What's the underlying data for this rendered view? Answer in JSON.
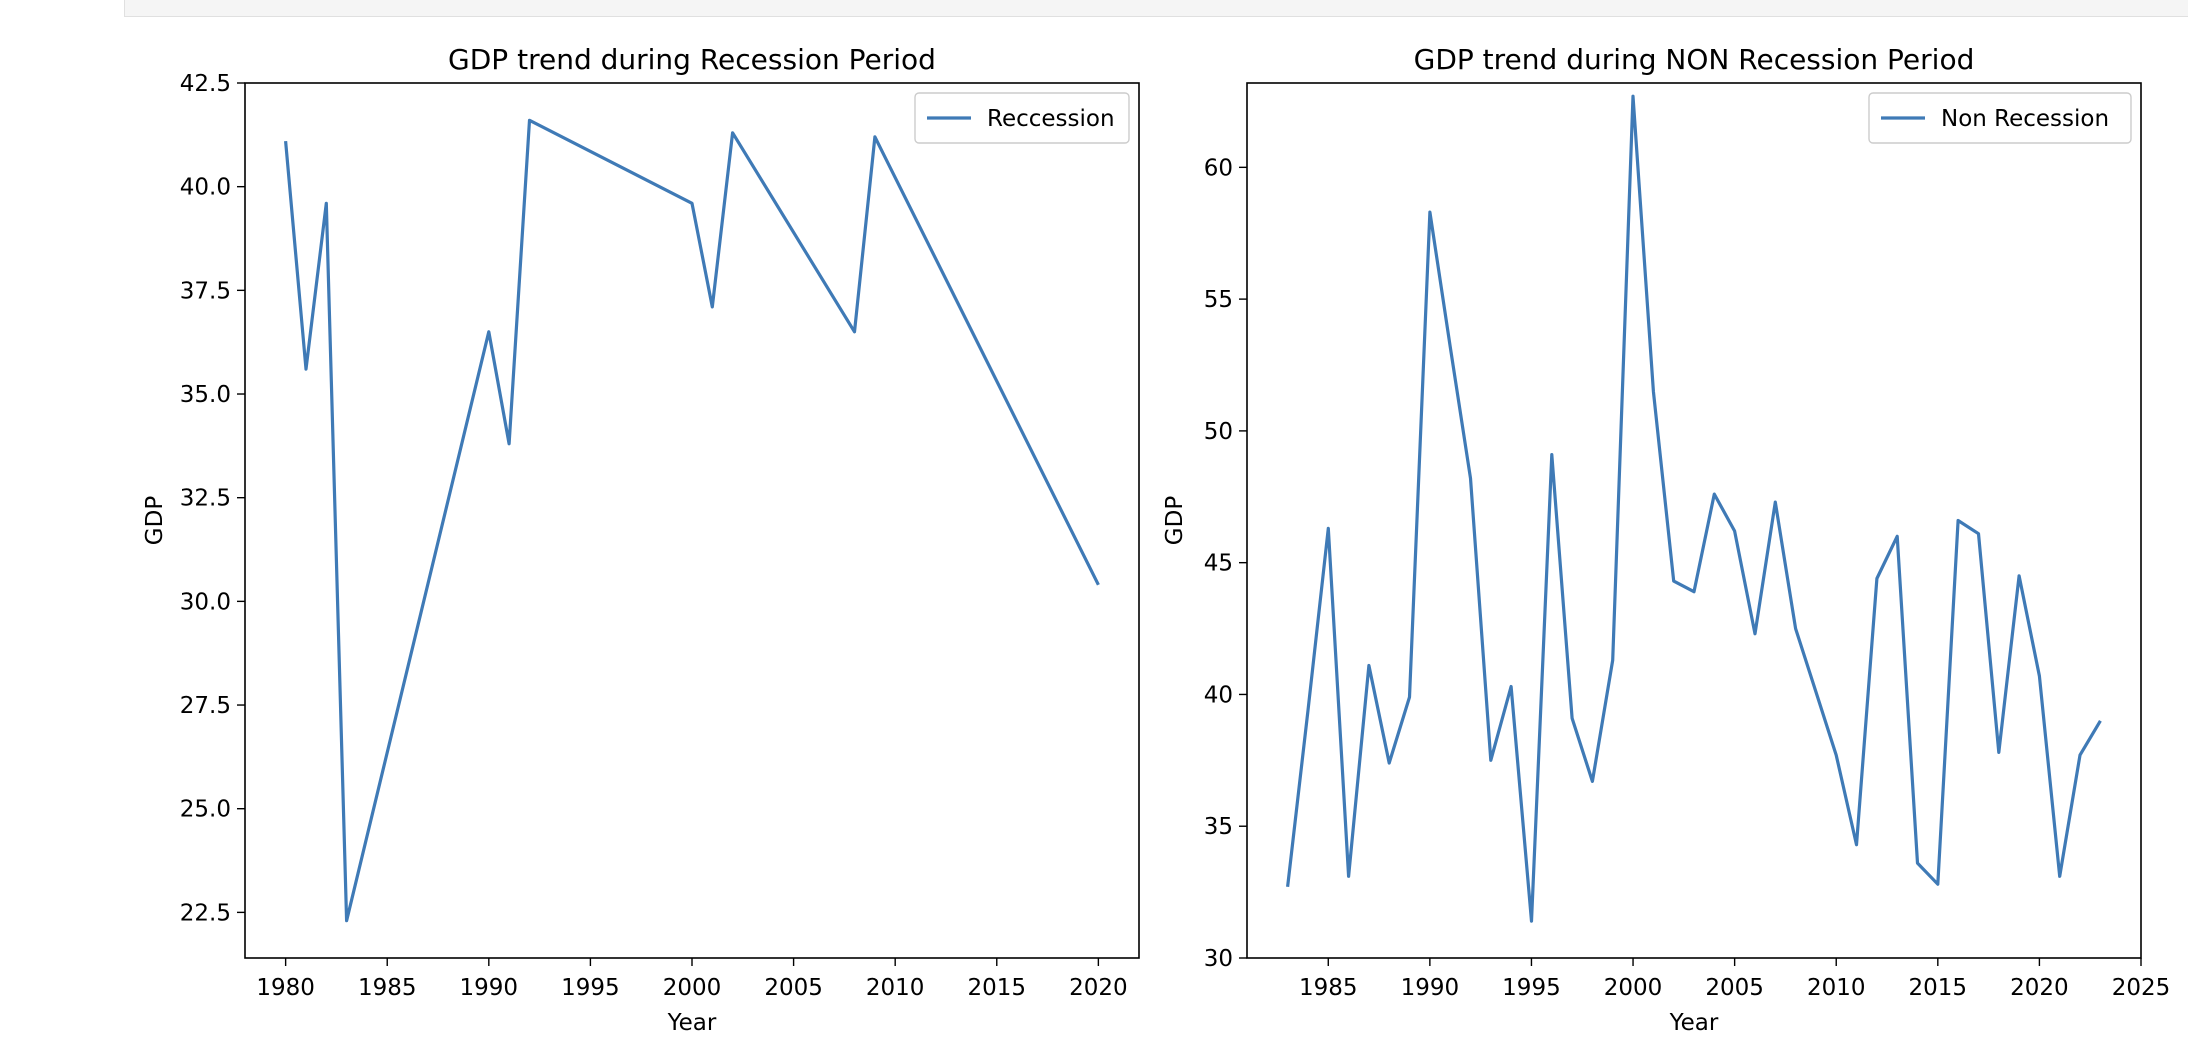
{
  "chart_data": [
    {
      "type": "line",
      "title": "GDP trend during Recession Period",
      "xlabel": "Year",
      "ylabel": "GDP",
      "xlim": [
        1978,
        2022
      ],
      "ylim": [
        21.4,
        42.5
      ],
      "xticks": [
        1980,
        1985,
        1990,
        1995,
        2000,
        2005,
        2010,
        2015,
        2020
      ],
      "yticks": [
        22.5,
        25.0,
        27.5,
        30.0,
        32.5,
        35.0,
        37.5,
        40.0,
        42.5
      ],
      "ytick_decimals": 1,
      "legend": "upper right",
      "series": [
        {
          "name": "Reccession",
          "color": "#3f7ab6",
          "x": [
            1980,
            1981,
            1982,
            1983,
            1990,
            1991,
            1992,
            2000,
            2001,
            2002,
            2008,
            2009,
            2020
          ],
          "y": [
            41.1,
            35.6,
            39.6,
            22.3,
            36.5,
            33.8,
            41.6,
            39.6,
            37.1,
            41.3,
            36.5,
            41.2,
            30.4
          ]
        }
      ]
    },
    {
      "type": "line",
      "title": "GDP trend during NON Recession Period",
      "xlabel": "Year",
      "ylabel": "GDP",
      "xlim": [
        1981,
        2025
      ],
      "ylim": [
        30,
        63.2
      ],
      "xticks": [
        1985,
        1990,
        1995,
        2000,
        2005,
        2010,
        2015,
        2020,
        2025
      ],
      "yticks": [
        30,
        35,
        40,
        45,
        50,
        55,
        60
      ],
      "ytick_decimals": 0,
      "legend": "upper right",
      "series": [
        {
          "name": "Non Recession",
          "color": "#3f7ab6",
          "x": [
            1983,
            1984,
            1985,
            1986,
            1987,
            1988,
            1989,
            1990,
            1991,
            1992,
            1993,
            1994,
            1995,
            1996,
            1997,
            1998,
            1999,
            2000,
            2001,
            2002,
            2003,
            2004,
            2005,
            2006,
            2007,
            2008,
            2009,
            2010,
            2011,
            2012,
            2013,
            2014,
            2015,
            2016,
            2017,
            2018,
            2019,
            2020,
            2021,
            2022,
            2023
          ],
          "y": [
            32.7,
            39.4,
            46.3,
            33.1,
            41.1,
            37.4,
            39.9,
            58.3,
            53.2,
            48.2,
            37.5,
            40.3,
            31.4,
            49.1,
            39.1,
            36.7,
            41.3,
            62.7,
            51.5,
            44.3,
            43.9,
            47.6,
            46.2,
            42.3,
            47.3,
            42.5,
            40.1,
            37.7,
            34.3,
            44.4,
            46.0,
            33.6,
            32.8,
            46.6,
            46.1,
            37.8,
            44.5,
            40.7,
            33.1,
            37.7,
            39.0
          ]
        }
      ]
    }
  ]
}
